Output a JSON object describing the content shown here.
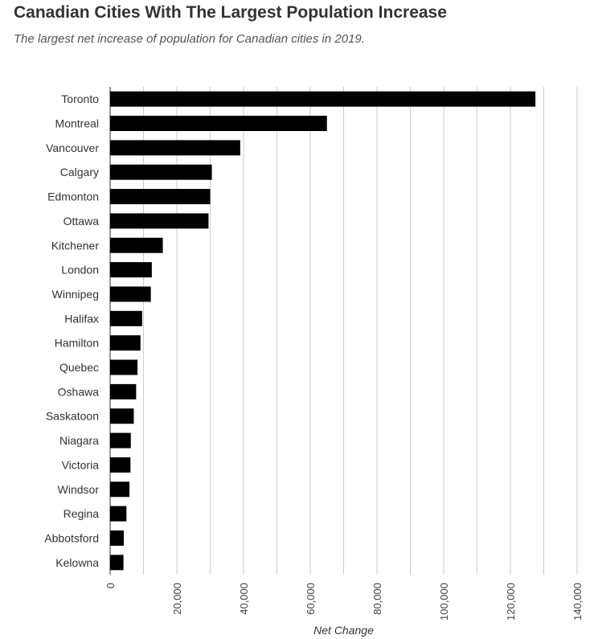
{
  "title": "Canadian Cities With The Largest Population Increase",
  "subtitle": "The largest net increase of population for Canadian cities in 2019.",
  "chart_data": {
    "type": "bar",
    "orientation": "horizontal",
    "categories": [
      "Toronto",
      "Montreal",
      "Vancouver",
      "Calgary",
      "Edmonton",
      "Ottawa",
      "Kitchener",
      "London",
      "Winnipeg",
      "Halifax",
      "Hamilton",
      "Quebec",
      "Oshawa",
      "Saskatoon",
      "Niagara",
      "Victoria",
      "Windsor",
      "Regina",
      "Abbotsford",
      "Kelowna"
    ],
    "values": [
      127500,
      65000,
      39000,
      30500,
      30000,
      29500,
      15800,
      12500,
      12200,
      9600,
      9100,
      8200,
      7800,
      7100,
      6200,
      6100,
      5800,
      4900,
      4100,
      4000
    ],
    "xlabel": "Net Change",
    "ylabel": "",
    "xlim": [
      0,
      140000
    ],
    "xticks": [
      0,
      20000,
      40000,
      60000,
      80000,
      100000,
      120000,
      140000
    ],
    "xtick_labels": [
      "0",
      "20,000",
      "40,000",
      "60,000",
      "80,000",
      "100,000",
      "120,000",
      "140,000"
    ],
    "grid": true,
    "bar_color": "#000000",
    "grid_color": "#cccccc"
  }
}
